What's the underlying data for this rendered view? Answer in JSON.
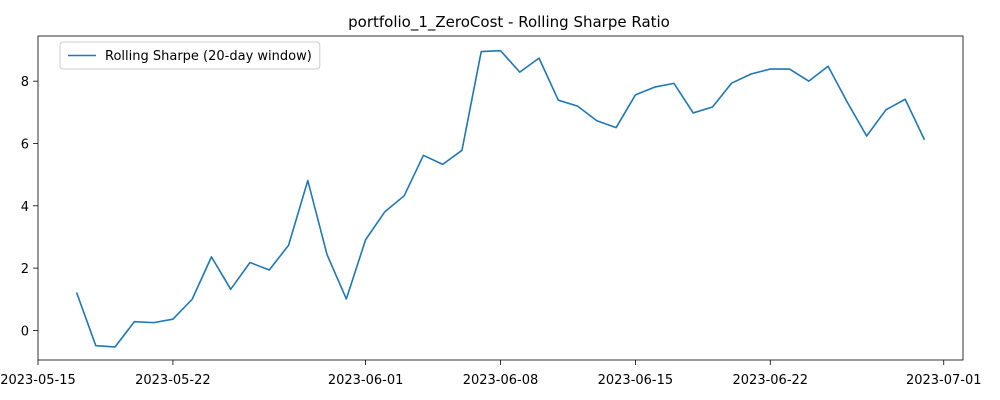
{
  "chart_data": {
    "type": "line",
    "title": "portfolio_1_ZeroCost - Rolling Sharpe Ratio",
    "xlabel": "",
    "ylabel": "",
    "x_type": "date",
    "xlim": [
      "2023-05-15",
      "2023-07-02"
    ],
    "ylim": [
      -0.95,
      9.45
    ],
    "x_ticks": [
      "2023-05-15",
      "2023-05-22",
      "2023-06-01",
      "2023-06-08",
      "2023-06-15",
      "2023-06-22",
      "2023-07-01"
    ],
    "y_ticks": [
      0,
      2,
      4,
      6,
      8
    ],
    "grid": false,
    "legend": {
      "position": "top-left"
    },
    "series": [
      {
        "name": "Rolling Sharpe (20-day window)",
        "color": "#1f77b4",
        "x": [
          "2023-05-17",
          "2023-05-18",
          "2023-05-19",
          "2023-05-20",
          "2023-05-21",
          "2023-05-22",
          "2023-05-23",
          "2023-05-24",
          "2023-05-25",
          "2023-05-26",
          "2023-05-27",
          "2023-05-28",
          "2023-05-29",
          "2023-05-30",
          "2023-05-31",
          "2023-06-01",
          "2023-06-02",
          "2023-06-03",
          "2023-06-04",
          "2023-06-05",
          "2023-06-06",
          "2023-06-07",
          "2023-06-08",
          "2023-06-09",
          "2023-06-10",
          "2023-06-11",
          "2023-06-12",
          "2023-06-13",
          "2023-06-14",
          "2023-06-15",
          "2023-06-16",
          "2023-06-17",
          "2023-06-18",
          "2023-06-19",
          "2023-06-20",
          "2023-06-21",
          "2023-06-22",
          "2023-06-23",
          "2023-06-24",
          "2023-06-25",
          "2023-06-26",
          "2023-06-27",
          "2023-06-28",
          "2023-06-29",
          "2023-06-30"
        ],
        "y": [
          1.22,
          -0.49,
          -0.53,
          0.28,
          0.25,
          0.36,
          1.0,
          2.36,
          1.32,
          2.18,
          1.94,
          2.73,
          4.81,
          2.43,
          1.01,
          2.91,
          3.81,
          4.32,
          5.62,
          5.33,
          5.78,
          8.95,
          8.98,
          8.29,
          8.74,
          7.39,
          7.2,
          6.73,
          6.51,
          7.56,
          7.81,
          7.93,
          6.98,
          7.17,
          7.94,
          8.23,
          8.39,
          8.39,
          8.0,
          8.48,
          7.32,
          6.24,
          7.08,
          7.42,
          6.12
        ]
      }
    ]
  }
}
